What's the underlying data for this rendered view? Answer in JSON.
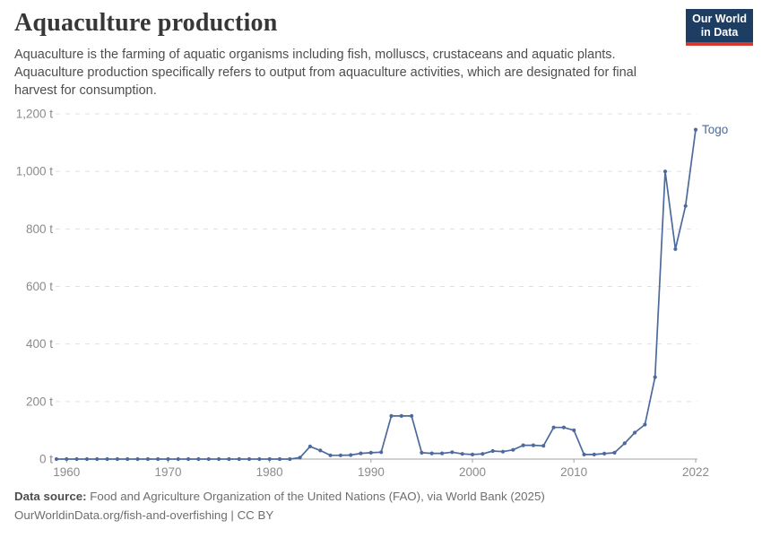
{
  "header": {
    "title": "Aquaculture production",
    "subtitle": "Aquaculture is the farming of aquatic organisms including fish, molluscs, crustaceans and aquatic plants. Aquaculture production specifically refers to output from aquaculture activities, which are designated for final harvest for consumption."
  },
  "logo": {
    "line1": "Our World",
    "line2": "in Data",
    "bg_color": "#1d3d63",
    "bar_color": "#d7382d"
  },
  "chart_data": {
    "type": "line",
    "title": "Aquaculture production",
    "series": [
      {
        "name": "Togo",
        "color": "#4c6a9c",
        "x": [
          1959,
          1960,
          1961,
          1962,
          1963,
          1964,
          1965,
          1966,
          1967,
          1968,
          1969,
          1970,
          1971,
          1972,
          1973,
          1974,
          1975,
          1976,
          1977,
          1978,
          1979,
          1980,
          1981,
          1982,
          1983,
          1984,
          1985,
          1986,
          1987,
          1988,
          1989,
          1990,
          1991,
          1992,
          1993,
          1994,
          1995,
          1996,
          1997,
          1998,
          1999,
          2000,
          2001,
          2002,
          2003,
          2004,
          2005,
          2006,
          2007,
          2008,
          2009,
          2010,
          2011,
          2012,
          2013,
          2014,
          2015,
          2016,
          2017,
          2018,
          2019,
          2020,
          2021,
          2022
        ],
        "values": [
          0,
          0,
          0,
          0,
          0,
          0,
          0,
          0,
          0,
          0,
          0,
          0,
          0,
          0,
          0,
          0,
          0,
          0,
          0,
          0,
          0,
          0,
          0,
          0,
          5,
          44,
          30,
          13,
          13,
          14,
          20,
          22,
          24,
          150,
          150,
          150,
          22,
          20,
          20,
          24,
          18,
          16,
          18,
          28,
          26,
          32,
          48,
          48,
          46,
          110,
          110,
          100,
          16,
          16,
          19,
          22,
          55,
          92,
          120,
          285,
          1000,
          730,
          880,
          1145
        ]
      }
    ],
    "xlabel": "",
    "ylabel": "",
    "xlim": [
      1959,
      2022
    ],
    "ylim": [
      0,
      1200
    ],
    "x_ticks": [
      1960,
      1970,
      1980,
      1990,
      2000,
      2010,
      2022
    ],
    "y_ticks": [
      0,
      200,
      400,
      600,
      800,
      1000,
      1200
    ],
    "y_tick_labels": [
      "0 t",
      "200 t",
      "400 t",
      "600 t",
      "800 t",
      "1,000 t",
      "1,200 t"
    ],
    "grid": "dashed horizontal",
    "legend_position": "end-of-line label",
    "entity_label": "Togo",
    "axis_color": "#a3a3a3",
    "grid_color": "#e0e0e0",
    "tick_label_color": "#8b8b8b"
  },
  "footer": {
    "source_label": "Data source:",
    "source_text": "Food and Agriculture Organization of the United Nations (FAO), via World Bank (2025)",
    "url": "OurWorldinData.org/fish-and-overfishing",
    "license": " | CC BY"
  }
}
